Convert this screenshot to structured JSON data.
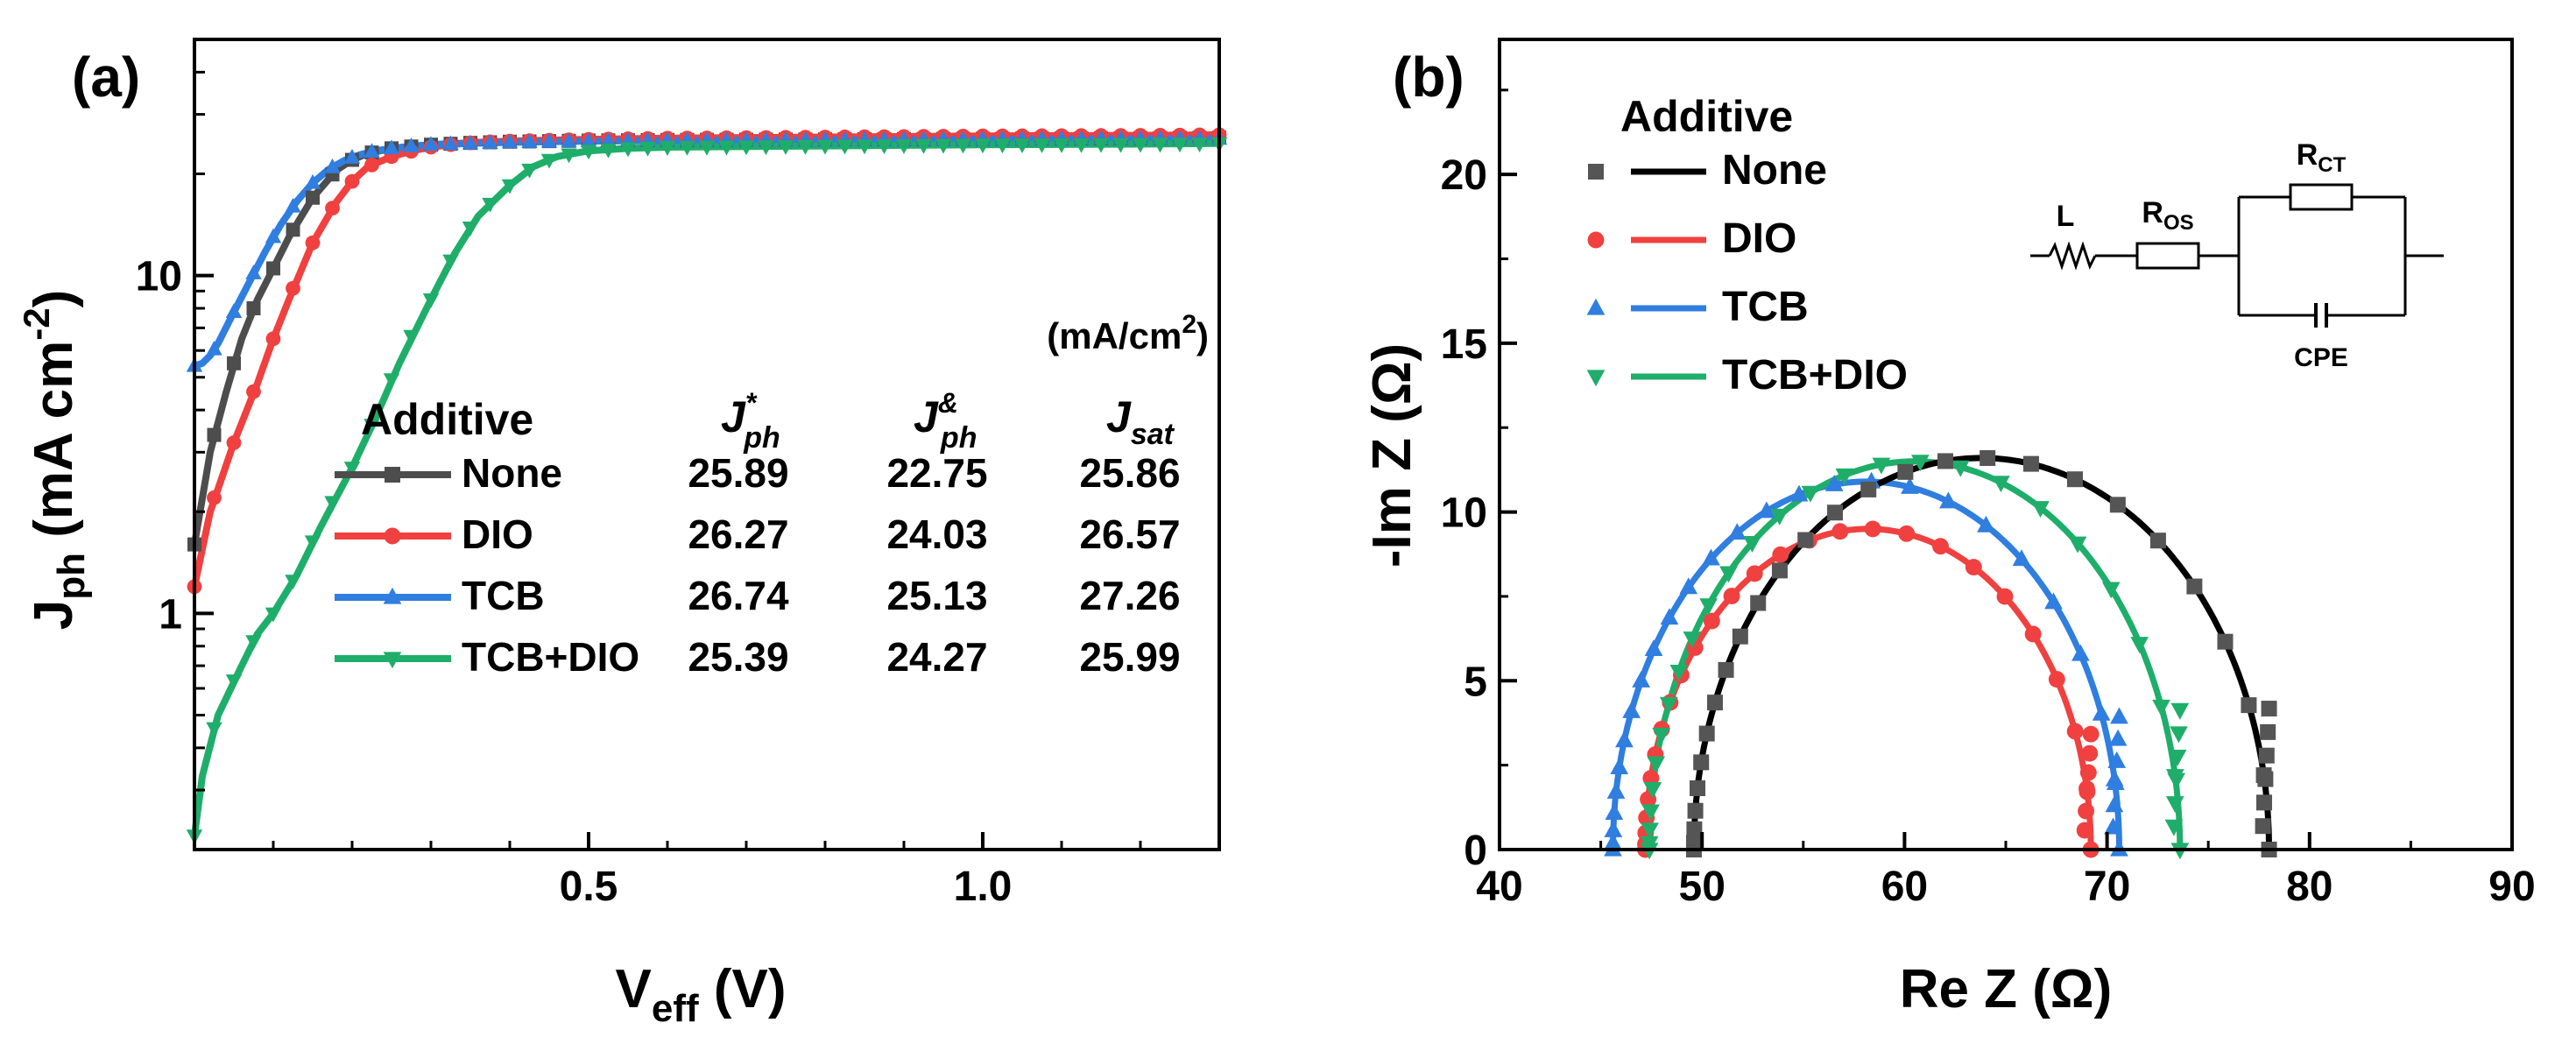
{
  "chart_data": [
    {
      "panel_label": "(a)",
      "type": "line",
      "yscale": "log",
      "xlim": [
        0.0,
        1.3
      ],
      "ylim": [
        0.2,
        50
      ],
      "xticks": [
        0.5,
        1.0
      ],
      "xtick_labels": [
        "0.5",
        "1.0"
      ],
      "yticks": [
        1,
        10
      ],
      "ytick_labels": [
        "1",
        "10"
      ],
      "xlabel": {
        "main": "V",
        "sub": "eff",
        "unit": " (V)"
      },
      "ylabel": {
        "main": "J",
        "sub": "ph",
        "unit": " (mA cm",
        "sup": "-2",
        "close": ")"
      },
      "table": {
        "unit_label": "(mA/cm",
        "unit_sup": "2",
        "unit_close": ")",
        "header_additive": "Additive",
        "col1": {
          "main": "J",
          "sup": "*",
          "sub": "ph"
        },
        "col2": {
          "main": "J",
          "sup": "&",
          "sub": "ph"
        },
        "col3": {
          "main": "J",
          "sub": "sat"
        },
        "rows": [
          {
            "name": "None",
            "jph_star": "25.89",
            "jph_amp": "22.75",
            "jsat": "25.86"
          },
          {
            "name": "DIO",
            "jph_star": "26.27",
            "jph_amp": "24.03",
            "jsat": "26.57"
          },
          {
            "name": "TCB",
            "jph_star": "26.74",
            "jph_amp": "25.13",
            "jsat": "27.26"
          },
          {
            "name": "TCB+DIO",
            "jph_star": "25.39",
            "jph_amp": "24.27",
            "jsat": "25.99"
          }
        ]
      },
      "series": [
        {
          "name": "None",
          "color": "#4d4d4d",
          "marker": "square",
          "x": [
            0.0,
            0.02,
            0.04,
            0.06,
            0.08,
            0.1,
            0.12,
            0.15,
            0.18,
            0.2,
            0.22,
            0.25,
            0.3,
            0.35,
            0.4,
            0.5,
            0.6,
            0.8,
            1.0,
            1.2,
            1.3
          ],
          "y": [
            1.6,
            3.0,
            4.5,
            6.5,
            8.5,
            10.5,
            13.0,
            17.0,
            20.5,
            22.0,
            23.0,
            23.8,
            24.4,
            24.7,
            24.9,
            25.1,
            25.2,
            25.3,
            25.4,
            25.5,
            25.6
          ]
        },
        {
          "name": "DIO",
          "color": "#f04040",
          "marker": "circle",
          "x": [
            0.0,
            0.02,
            0.05,
            0.08,
            0.1,
            0.12,
            0.15,
            0.18,
            0.2,
            0.22,
            0.25,
            0.28,
            0.3,
            0.33,
            0.36,
            0.4,
            0.5,
            0.6,
            0.8,
            1.0,
            1.2,
            1.3
          ],
          "y": [
            1.2,
            2.0,
            3.2,
            4.8,
            6.5,
            8.5,
            12.5,
            16.5,
            19.0,
            21.0,
            22.5,
            23.5,
            24.0,
            24.5,
            24.8,
            25.0,
            25.3,
            25.5,
            25.7,
            25.9,
            26.0,
            26.1
          ]
        },
        {
          "name": "TCB",
          "color": "#2f7ee0",
          "marker": "triangle-up",
          "x": [
            0.0,
            0.01,
            0.02,
            0.03,
            0.05,
            0.07,
            0.09,
            0.11,
            0.13,
            0.15,
            0.17,
            0.19,
            0.21,
            0.23,
            0.25,
            0.28,
            0.3,
            0.35,
            0.4,
            0.5,
            0.6,
            0.8,
            1.0,
            1.2,
            1.3
          ],
          "y": [
            5.4,
            5.5,
            5.8,
            6.3,
            7.8,
            9.6,
            11.8,
            14.2,
            16.6,
            18.8,
            20.6,
            21.9,
            22.8,
            23.4,
            23.8,
            24.2,
            24.4,
            24.6,
            24.8,
            25.0,
            25.1,
            25.2,
            25.3,
            25.4,
            25.4
          ]
        },
        {
          "name": "TCB+DIO",
          "color": "#1fae6a",
          "marker": "triangle-down",
          "x": [
            0.0,
            0.01,
            0.03,
            0.06,
            0.08,
            0.1,
            0.13,
            0.16,
            0.2,
            0.23,
            0.26,
            0.3,
            0.33,
            0.36,
            0.4,
            0.43,
            0.46,
            0.5,
            0.55,
            0.6,
            0.8,
            1.0,
            1.2,
            1.3
          ],
          "y": [
            0.22,
            0.33,
            0.5,
            0.7,
            0.87,
            1.0,
            1.3,
            1.8,
            2.7,
            3.8,
            5.5,
            8.5,
            11.6,
            15.0,
            18.5,
            21.0,
            22.5,
            23.4,
            23.8,
            24.0,
            24.2,
            24.4,
            24.5,
            24.6
          ]
        }
      ]
    },
    {
      "panel_label": "(b)",
      "type": "scatter",
      "xlim": [
        40,
        90
      ],
      "ylim": [
        0,
        24
      ],
      "xticks": [
        40,
        50,
        60,
        70,
        80,
        90
      ],
      "xtick_labels": [
        "40",
        "50",
        "60",
        "70",
        "80",
        "90"
      ],
      "yticks": [
        0,
        5,
        10,
        15,
        20
      ],
      "ytick_labels": [
        "0",
        "5",
        "10",
        "15",
        "20"
      ],
      "xlabel": "Re Z (Ω)",
      "ylabel": "-Im Z (Ω)",
      "legend_title": "Additive",
      "circuit_labels": {
        "L": "L",
        "R_OS_main": "R",
        "R_OS_sub": "OS",
        "R_CT_main": "R",
        "R_CT_sub": "CT",
        "CPE": "CPE"
      },
      "series": [
        {
          "name": "None",
          "color": "#000000",
          "marker_color": "#555555",
          "marker": "square",
          "x_start": 49.6,
          "x_end": 78.0,
          "peak": 11.6
        },
        {
          "name": "DIO",
          "color": "#f04040",
          "marker_color": "#f04040",
          "marker": "circle",
          "x_start": 47.2,
          "x_end": 69.2,
          "peak": 9.5
        },
        {
          "name": "TCB",
          "color": "#2f7ee0",
          "marker_color": "#2f7ee0",
          "marker": "triangle-up",
          "x_start": 45.6,
          "x_end": 70.6,
          "peak": 10.9
        },
        {
          "name": "TCB+DIO",
          "color": "#1fae6a",
          "marker_color": "#1fae6a",
          "marker": "triangle-down",
          "x_start": 47.4,
          "x_end": 73.6,
          "peak": 11.5
        }
      ]
    }
  ]
}
